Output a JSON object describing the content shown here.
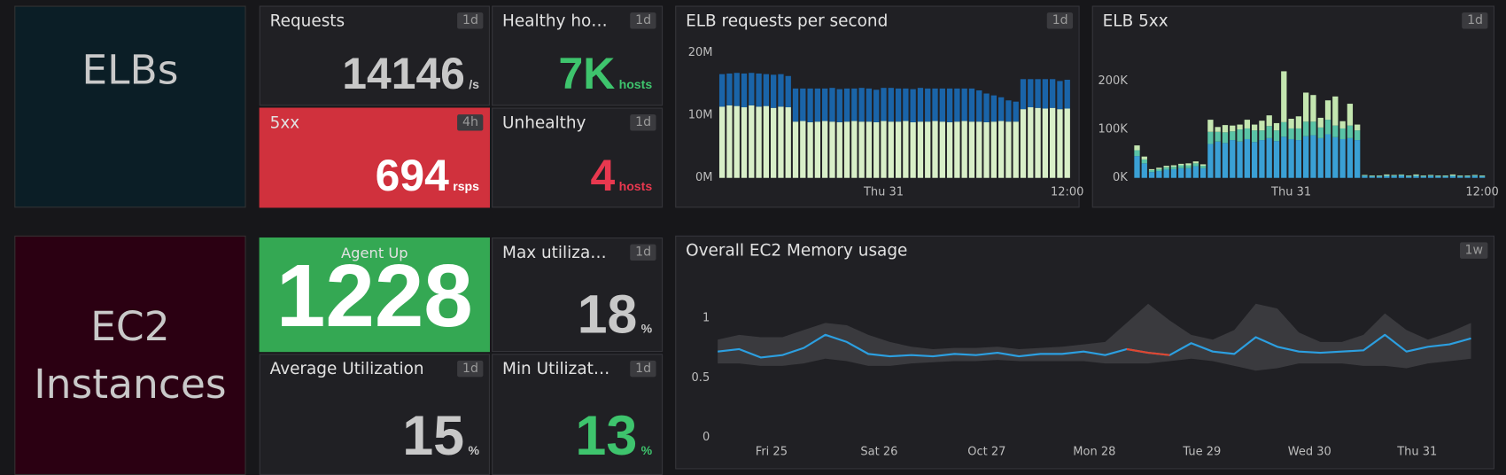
{
  "groups": [
    {
      "label": "ELBs",
      "color": "#0b1e26"
    },
    {
      "label": "EC2 Instances",
      "color": "#2b0012"
    }
  ],
  "tiles": [
    {
      "title": "Requests",
      "timeframe": "1d",
      "value": "14146",
      "unit": "/s",
      "color": "#c8c8c8"
    },
    {
      "title": "Healthy ho…",
      "timeframe": "1d",
      "value": "7K",
      "unit": "hosts",
      "color": "#3ec46d"
    },
    {
      "title": "5xx",
      "timeframe": "4h",
      "value": "694",
      "unit": "rsps",
      "color": "#ffffff",
      "background": "#d0313d"
    },
    {
      "title": "Unhealthy",
      "timeframe": "1d",
      "value": "4",
      "unit": "hosts",
      "color": "#e8384f"
    },
    {
      "title": "Agent Up",
      "value": "1228",
      "color": "#ffffff",
      "background": "#34a853"
    },
    {
      "title": "Max utiliza…",
      "timeframe": "1d",
      "value": "18",
      "unit": "%",
      "color": "#c8c8c8"
    },
    {
      "title": "Average Utilization",
      "timeframe": "1d",
      "value": "15",
      "unit": "%",
      "color": "#c8c8c8"
    },
    {
      "title": "Min Utilizat…",
      "timeframe": "1d",
      "value": "13",
      "unit": "%",
      "color": "#3ec46d"
    }
  ],
  "chart_data": [
    {
      "type": "bar",
      "stacked": true,
      "title": "ELB requests per second",
      "timeframe": "1d",
      "categories": [
        null,
        null,
        null,
        null,
        null,
        null,
        null,
        null,
        null,
        null,
        null,
        null,
        null,
        null,
        null,
        null,
        null,
        null,
        null,
        null,
        null,
        null,
        "Thu 31",
        null,
        null,
        null,
        null,
        null,
        null,
        null,
        null,
        null,
        null,
        null,
        null,
        null,
        null,
        null,
        null,
        null,
        null,
        null,
        null,
        null,
        null,
        null,
        null,
        "12:00"
      ],
      "series": [
        {
          "color": "#d8efc8",
          "values": [
            11.4,
            11.6,
            11.5,
            11.3,
            11.6,
            11.4,
            11.5,
            11.2,
            11.4,
            11.3,
            9.0,
            9.1,
            8.9,
            9.0,
            9.1,
            9.0,
            8.9,
            9.0,
            9.1,
            9.0,
            9.0,
            8.9,
            9.1,
            9.0,
            9.0,
            9.1,
            8.9,
            9.0,
            9.0,
            9.1,
            9.0,
            8.9,
            9.0,
            9.1,
            9.0,
            9.0,
            8.9,
            9.0,
            9.1,
            9.0,
            9.0,
            11.0,
            11.3,
            11.2,
            11.1,
            11.2,
            11.0,
            11.1
          ]
        },
        {
          "color": "#1a64a8",
          "values": [
            5.2,
            5.1,
            5.3,
            5.4,
            5.2,
            5.3,
            5.1,
            5.3,
            5.2,
            5.0,
            5.3,
            5.2,
            5.4,
            5.3,
            5.2,
            5.4,
            5.3,
            5.3,
            5.2,
            5.4,
            5.3,
            5.2,
            5.3,
            5.4,
            5.3,
            5.2,
            5.3,
            5.4,
            5.3,
            5.2,
            5.3,
            5.4,
            5.3,
            5.2,
            5.3,
            5.0,
            4.6,
            4.2,
            3.8,
            3.4,
            3.2,
            4.8,
            4.5,
            4.6,
            4.7,
            4.6,
            4.5,
            4.6
          ]
        }
      ],
      "ylim": [
        0,
        20
      ],
      "yticks": [
        {
          "value": 0,
          "label": "0M"
        },
        {
          "value": 10,
          "label": "10M"
        },
        {
          "value": 20,
          "label": "20M"
        }
      ]
    },
    {
      "type": "bar",
      "stacked": true,
      "title": "ELB 5xx",
      "timeframe": "1d",
      "categories": [
        null,
        null,
        null,
        null,
        null,
        null,
        null,
        null,
        null,
        null,
        null,
        null,
        null,
        null,
        null,
        null,
        null,
        null,
        null,
        null,
        null,
        "Thu 31",
        null,
        null,
        null,
        null,
        null,
        null,
        null,
        null,
        null,
        null,
        null,
        null,
        null,
        null,
        null,
        null,
        null,
        null,
        null,
        null,
        null,
        null,
        null,
        null,
        null,
        "12:00"
      ],
      "series": [
        {
          "color": "#3aa0d5",
          "values": [
            45,
            30,
            12,
            14,
            17,
            18,
            20,
            20,
            24,
            20,
            70,
            75,
            72,
            78,
            75,
            80,
            74,
            78,
            82,
            76,
            85,
            80,
            78,
            86,
            88,
            82,
            90,
            84,
            80,
            82,
            78,
            4,
            3,
            3,
            4,
            4,
            5,
            3,
            4,
            3,
            4,
            3,
            3,
            4,
            3,
            3,
            4,
            3
          ]
        },
        {
          "color": "#59c3a6",
          "values": [
            12,
            8,
            4,
            4,
            5,
            5,
            6,
            6,
            6,
            5,
            25,
            20,
            22,
            18,
            25,
            22,
            24,
            20,
            25,
            22,
            30,
            22,
            24,
            30,
            28,
            22,
            30,
            24,
            22,
            26,
            20,
            1,
            1,
            1,
            1,
            1,
            1,
            1,
            1,
            1,
            1,
            1,
            1,
            1,
            1,
            1,
            1,
            1
          ]
        },
        {
          "color": "#c4e6b0",
          "values": [
            10,
            6,
            2,
            3,
            3,
            3,
            3,
            4,
            4,
            3,
            25,
            10,
            15,
            12,
            10,
            18,
            12,
            20,
            22,
            15,
            105,
            20,
            25,
            60,
            55,
            20,
            40,
            60,
            15,
            45,
            12,
            1,
            1,
            1,
            2,
            1,
            1,
            1,
            2,
            1,
            1,
            1,
            1,
            2,
            1,
            1,
            1,
            1
          ]
        }
      ],
      "ylim": [
        0,
        250
      ],
      "yticks": [
        {
          "value": 0,
          "label": "0K"
        },
        {
          "value": 100,
          "label": "100K"
        },
        {
          "value": 200,
          "label": "200K"
        }
      ]
    },
    {
      "type": "line",
      "title": "Overall EC2 Memory usage",
      "timeframe": "1w",
      "x": [
        -0.5,
        -0.3,
        -0.1,
        0.1,
        0.3,
        0.5,
        0.7,
        0.9,
        1.1,
        1.3,
        1.5,
        1.7,
        1.9,
        2.1,
        2.3,
        2.5,
        2.7,
        2.9,
        3.1,
        3.3,
        3.5,
        3.7,
        3.9,
        4.1,
        4.3,
        4.5,
        4.7,
        4.9,
        5.1,
        5.3,
        5.5,
        5.7,
        5.9,
        6.1,
        6.3,
        6.5
      ],
      "band": {
        "color": "#3a3a3e",
        "lower": [
          0.62,
          0.62,
          0.6,
          0.6,
          0.62,
          0.66,
          0.64,
          0.6,
          0.6,
          0.62,
          0.63,
          0.64,
          0.64,
          0.65,
          0.64,
          0.64,
          0.64,
          0.64,
          0.62,
          0.62,
          0.62,
          0.64,
          0.66,
          0.64,
          0.6,
          0.56,
          0.58,
          0.62,
          0.62,
          0.62,
          0.6,
          0.6,
          0.58,
          0.62,
          0.64,
          0.66
        ],
        "upper": [
          0.82,
          0.86,
          0.84,
          0.84,
          0.9,
          0.96,
          0.94,
          0.86,
          0.8,
          0.76,
          0.74,
          0.75,
          0.75,
          0.76,
          0.74,
          0.75,
          0.76,
          0.78,
          0.8,
          0.96,
          1.12,
          0.98,
          0.86,
          0.82,
          0.9,
          1.12,
          1.08,
          0.88,
          0.8,
          0.8,
          0.86,
          1.04,
          0.9,
          0.82,
          0.88,
          0.96
        ]
      },
      "series": [
        {
          "color": "#2c9fe0",
          "values": [
            0.72,
            0.74,
            0.67,
            0.69,
            0.75,
            0.86,
            0.8,
            0.7,
            0.68,
            0.69,
            0.68,
            0.7,
            0.69,
            0.71,
            0.68,
            0.7,
            0.7,
            0.72,
            0.69,
            0.74,
            0.71,
            0.69,
            0.79,
            0.72,
            0.7,
            0.84,
            0.76,
            0.72,
            0.71,
            0.72,
            0.73,
            0.86,
            0.72,
            0.76,
            0.78,
            0.83
          ]
        },
        {
          "color": "#e0452e",
          "values": [
            null,
            null,
            null,
            null,
            null,
            null,
            null,
            null,
            null,
            null,
            null,
            null,
            null,
            null,
            null,
            null,
            null,
            null,
            null,
            0.74,
            0.71,
            0.69,
            null,
            null,
            null,
            null,
            null,
            null,
            null,
            null,
            null,
            null,
            null,
            null,
            null,
            null
          ]
        }
      ],
      "xlim": [
        -0.52,
        6.62
      ],
      "xticks": [
        {
          "value": 0,
          "label": "Fri 25"
        },
        {
          "value": 1,
          "label": "Sat 26"
        },
        {
          "value": 2,
          "label": "Oct 27"
        },
        {
          "value": 3,
          "label": "Mon 28"
        },
        {
          "value": 4,
          "label": "Tue 29"
        },
        {
          "value": 5,
          "label": "Wed 30"
        },
        {
          "value": 6,
          "label": "Thu 31"
        }
      ],
      "ylim": [
        0,
        1.2
      ],
      "yticks": [
        0,
        0.5,
        1
      ]
    }
  ]
}
